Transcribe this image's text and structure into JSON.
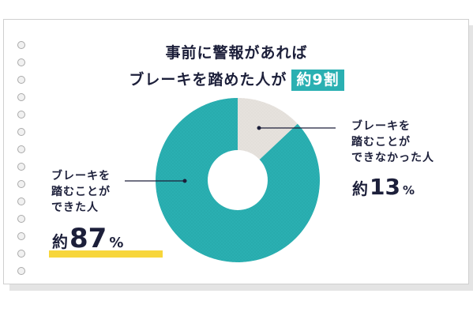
{
  "title": {
    "line1": "事前に警報があれば",
    "line2": "ブレーキを踏めた人が",
    "highlight": "約9割"
  },
  "chart_data": {
    "type": "pie",
    "donut": true,
    "slices": [
      {
        "label": "ブレーキを踏むことができなかった人",
        "value": 13,
        "display": "約13%",
        "color": "#e6e2dd"
      },
      {
        "label": "ブレーキを踏むことができた人",
        "value": 87,
        "display": "約87%",
        "color": "#2ab0b2"
      }
    ]
  },
  "callouts": {
    "right": {
      "line1": "ブレーキを",
      "line2": "踏むことが",
      "line3": "できなかった人",
      "prefix": "約",
      "number": "13",
      "unit": "%"
    },
    "left": {
      "line1": "ブレーキを",
      "line2": "踏むことが",
      "line3": "できた人",
      "prefix": "約",
      "number": "87",
      "unit": "%"
    }
  },
  "colors": {
    "teal": "#2ab0b2",
    "grey": "#e6e2dd",
    "navy": "#1c1f3a",
    "highlight_yellow": "#f7d63b"
  }
}
